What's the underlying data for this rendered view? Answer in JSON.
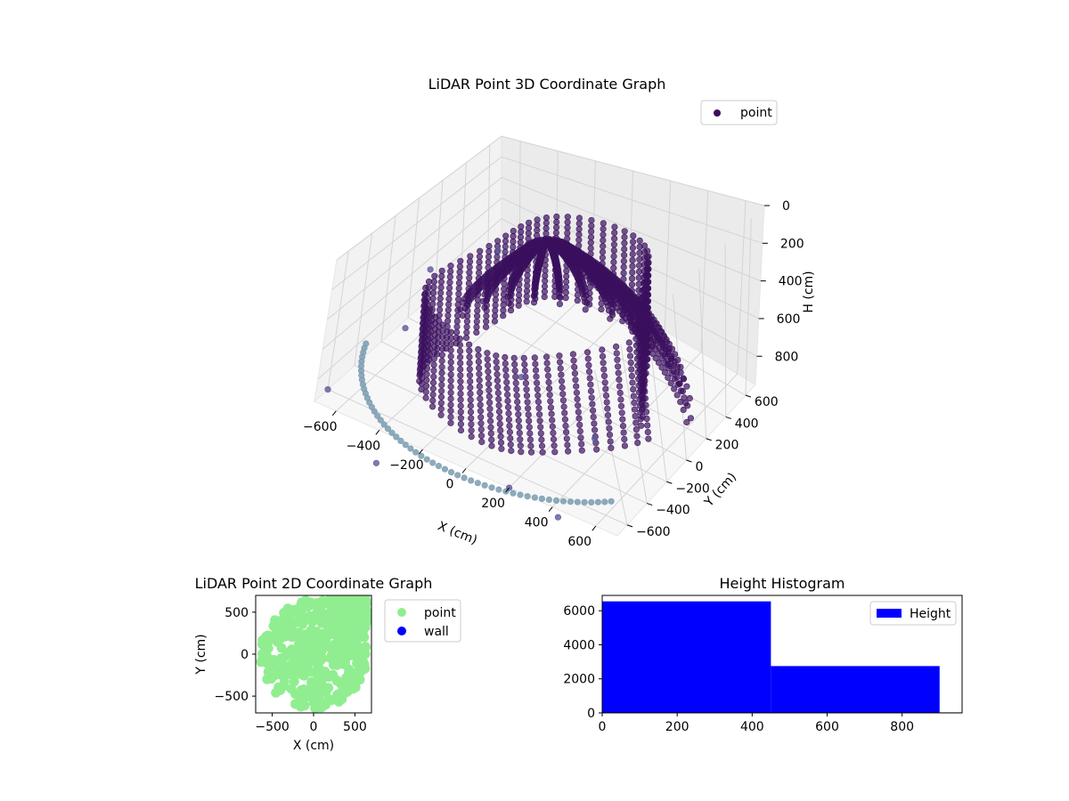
{
  "chart_data": [
    {
      "type": "scatter",
      "projection": "3d",
      "title": "LiDAR Point 3D Coordinate Graph",
      "xlabel": "X (cm)",
      "ylabel": "Y (cm)",
      "zlabel": "H (cm)",
      "xlim": [
        -700,
        700
      ],
      "ylim": [
        -700,
        700
      ],
      "zlim": [
        0,
        950
      ],
      "z_inverted": true,
      "xticks": [
        -600,
        -400,
        -200,
        0,
        200,
        400,
        600
      ],
      "yticks": [
        -600,
        -400,
        -200,
        0,
        200,
        400,
        600
      ],
      "zticks": [
        0,
        200,
        400,
        600,
        800
      ],
      "grid": true,
      "legend": {
        "position": "upper-right",
        "entries": [
          "point"
        ]
      },
      "series": [
        {
          "name": "point",
          "color": "#3b0f5e",
          "structure": "curved arcs of points rising from near floor level at the outer radius to the top",
          "arcs": [
            {
              "angle_deg": 20,
              "r_max": 650
            },
            {
              "angle_deg": 32,
              "r_max": 640
            },
            {
              "angle_deg": 44,
              "r_max": 630
            },
            {
              "angle_deg": 56,
              "r_max": 620
            },
            {
              "angle_deg": 68,
              "r_max": 610
            },
            {
              "angle_deg": 80,
              "r_max": 600
            },
            {
              "angle_deg": 92,
              "r_max": 590
            },
            {
              "angle_deg": 104,
              "r_max": 580
            },
            {
              "angle_deg": 116,
              "r_max": 570
            },
            {
              "angle_deg": 128,
              "r_max": 560
            },
            {
              "angle_deg": 140,
              "r_max": 560
            },
            {
              "angle_deg": 152,
              "r_max": 560
            },
            {
              "angle_deg": 164,
              "r_max": 560
            }
          ],
          "ring": {
            "radius": 560,
            "h_min": 280,
            "h_max": 900
          },
          "floor_ring": {
            "radius": 780,
            "angle_deg_from": 200,
            "angle_deg_to": 320,
            "h": 0
          },
          "outliers": [
            {
              "x": -650,
              "y": -100,
              "h": 900
            },
            {
              "x": -700,
              "y": 150,
              "h": 700
            },
            {
              "x": -450,
              "y": 300,
              "h": 500
            },
            {
              "x": -100,
              "y": -50,
              "h": 900
            },
            {
              "x": 350,
              "y": -200,
              "h": 900
            },
            {
              "x": -700,
              "y": -600,
              "h": 950
            },
            {
              "x": 200,
              "y": -700,
              "h": 950
            },
            {
              "x": 450,
              "y": -750,
              "h": 950
            },
            {
              "x": -300,
              "y": -900,
              "h": 950
            }
          ]
        }
      ]
    },
    {
      "type": "scatter",
      "title": "LiDAR Point 2D Coordinate Graph",
      "xlabel": "X (cm)",
      "ylabel": "Y (cm)",
      "xlim": [
        -700,
        700
      ],
      "ylim": [
        -700,
        700
      ],
      "xticks": [
        -500,
        0,
        500
      ],
      "yticks": [
        -500,
        0,
        500
      ],
      "grid": false,
      "legend": {
        "position": "outside-right",
        "entries": [
          "point",
          "wall"
        ]
      },
      "series": [
        {
          "name": "point",
          "color": "#90ee90",
          "extent": "dense points filling roughly -650..650 in X and -650..650 in Y"
        },
        {
          "name": "wall",
          "color": "#0000ff",
          "points": []
        }
      ]
    },
    {
      "type": "bar",
      "subtype": "histogram",
      "title": "Height Histogram",
      "xlim": [
        0,
        960
      ],
      "ylim": [
        0,
        6900
      ],
      "xticks": [
        0,
        200,
        400,
        600,
        800
      ],
      "yticks": [
        0,
        2000,
        4000,
        6000
      ],
      "grid": false,
      "legend": {
        "position": "upper-right",
        "entries": [
          "Height"
        ]
      },
      "series": [
        {
          "name": "Height",
          "color": "#0000ff",
          "bins": [
            {
              "from": 0,
              "to": 450,
              "count": 6550
            },
            {
              "from": 450,
              "to": 900,
              "count": 2750
            },
            {
              "from": 900,
              "to": 1350,
              "count": 30
            }
          ]
        }
      ]
    }
  ]
}
